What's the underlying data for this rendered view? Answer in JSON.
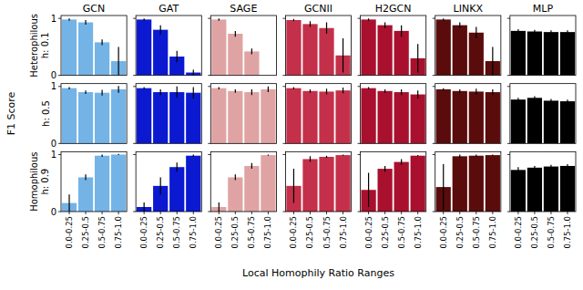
{
  "chart_data": [
    {
      "type": "bar",
      "title": "GCN",
      "ylabel": [
        "Heterophilous",
        "h: 0.1"
      ],
      "categories": [
        "0.0-0.25",
        "0.25-0.5",
        "0.5-0.75",
        "0.75-1.0"
      ],
      "values": [
        0.98,
        0.93,
        0.58,
        0.25
      ],
      "errors": [
        0.02,
        0.04,
        0.05,
        0.25
      ],
      "color": "#74b3e6",
      "ylim": [
        0,
        1.05
      ],
      "yticks": [
        0,
        1
      ],
      "tick_labels": "y"
    },
    {
      "type": "bar",
      "title": "GAT",
      "categories": [
        "0.0-0.25",
        "0.25-0.5",
        "0.5-0.75",
        "0.75-1.0"
      ],
      "values": [
        0.98,
        0.8,
        0.33,
        0.05
      ],
      "errors": [
        0.02,
        0.08,
        0.1,
        0.05
      ],
      "color": "#0b1ad0",
      "ylim": [
        0,
        1.05
      ],
      "yticks": [
        0,
        1
      ],
      "tick_labels": false
    },
    {
      "type": "bar",
      "title": "SAGE",
      "categories": [
        "0.0-0.25",
        "0.25-0.5",
        "0.5-0.75",
        "0.75-1.0"
      ],
      "values": [
        0.98,
        0.73,
        0.42,
        0.0
      ],
      "errors": [
        0.02,
        0.05,
        0.05,
        0.0
      ],
      "color": "#e0a3a3",
      "ylim": [
        0,
        1.05
      ],
      "yticks": [
        0,
        1
      ],
      "tick_labels": false
    },
    {
      "type": "bar",
      "title": "GCNII",
      "categories": [
        "0.0-0.25",
        "0.25-0.5",
        "0.5-0.75",
        "0.75-1.0"
      ],
      "values": [
        0.97,
        0.9,
        0.83,
        0.35
      ],
      "errors": [
        0.02,
        0.05,
        0.1,
        0.3
      ],
      "color": "#c4304a",
      "ylim": [
        0,
        1.05
      ],
      "yticks": [
        0,
        1
      ],
      "tick_labels": false
    },
    {
      "type": "bar",
      "title": "H2GCN",
      "categories": [
        "0.0-0.25",
        "0.25-0.5",
        "0.5-0.75",
        "0.75-1.0"
      ],
      "values": [
        0.98,
        0.88,
        0.78,
        0.3
      ],
      "errors": [
        0.02,
        0.05,
        0.1,
        0.25
      ],
      "color": "#a8102e",
      "ylim": [
        0,
        1.05
      ],
      "yticks": [
        0,
        1
      ],
      "tick_labels": false
    },
    {
      "type": "bar",
      "title": "LINKX",
      "categories": [
        "0.0-0.25",
        "0.25-0.5",
        "0.5-0.75",
        "0.75-1.0"
      ],
      "values": [
        0.98,
        0.88,
        0.75,
        0.25
      ],
      "errors": [
        0.02,
        0.05,
        0.1,
        0.25
      ],
      "color": "#5a0c0c",
      "ylim": [
        0,
        1.05
      ],
      "yticks": [
        0,
        1
      ],
      "tick_labels": false
    },
    {
      "type": "bar",
      "title": "MLP",
      "categories": [
        "0.0-0.25",
        "0.25-0.5",
        "0.5-0.75",
        "0.75-1.0"
      ],
      "values": [
        0.78,
        0.77,
        0.76,
        0.76
      ],
      "errors": [
        0.03,
        0.03,
        0.03,
        0.03
      ],
      "color": "#000000",
      "ylim": [
        0,
        1.05
      ],
      "yticks": [
        0,
        1
      ],
      "tick_labels": false
    },
    {
      "type": "bar",
      "ylabel": [
        "h: 0.5"
      ],
      "categories": [
        "0.0-0.25",
        "0.25-0.5",
        "0.5-0.75",
        "0.75-1.0"
      ],
      "values": [
        0.97,
        0.9,
        0.89,
        0.95
      ],
      "errors": [
        0.02,
        0.03,
        0.05,
        0.06
      ],
      "color": "#74b3e6",
      "ylim": [
        0,
        1.05
      ],
      "yticks": [
        0,
        1
      ],
      "tick_labels": "y"
    },
    {
      "type": "bar",
      "categories": [
        "0.0-0.25",
        "0.25-0.5",
        "0.5-0.75",
        "0.75-1.0"
      ],
      "values": [
        0.97,
        0.9,
        0.9,
        0.89
      ],
      "errors": [
        0.02,
        0.05,
        0.1,
        0.1
      ],
      "color": "#0b1ad0",
      "ylim": [
        0,
        1.05
      ],
      "yticks": [
        0,
        1
      ],
      "tick_labels": false
    },
    {
      "type": "bar",
      "categories": [
        "0.0-0.25",
        "0.25-0.5",
        "0.5-0.75",
        "0.75-1.0"
      ],
      "values": [
        0.97,
        0.92,
        0.9,
        0.95
      ],
      "errors": [
        0.02,
        0.03,
        0.05,
        0.05
      ],
      "color": "#e0a3a3",
      "ylim": [
        0,
        1.05
      ],
      "yticks": [
        0,
        1
      ],
      "tick_labels": false
    },
    {
      "type": "bar",
      "categories": [
        "0.0-0.25",
        "0.25-0.5",
        "0.5-0.75",
        "0.75-1.0"
      ],
      "values": [
        0.97,
        0.92,
        0.91,
        0.93
      ],
      "errors": [
        0.02,
        0.03,
        0.05,
        0.05
      ],
      "color": "#c4304a",
      "ylim": [
        0,
        1.05
      ],
      "yticks": [
        0,
        1
      ],
      "tick_labels": false
    },
    {
      "type": "bar",
      "categories": [
        "0.0-0.25",
        "0.25-0.5",
        "0.5-0.75",
        "0.75-1.0"
      ],
      "values": [
        0.97,
        0.92,
        0.9,
        0.86
      ],
      "errors": [
        0.02,
        0.03,
        0.05,
        0.07
      ],
      "color": "#a8102e",
      "ylim": [
        0,
        1.05
      ],
      "yticks": [
        0,
        1
      ],
      "tick_labels": false
    },
    {
      "type": "bar",
      "categories": [
        "0.0-0.25",
        "0.25-0.5",
        "0.5-0.75",
        "0.75-1.0"
      ],
      "values": [
        0.95,
        0.92,
        0.91,
        0.9
      ],
      "errors": [
        0.02,
        0.03,
        0.05,
        0.05
      ],
      "color": "#5a0c0c",
      "ylim": [
        0,
        1.05
      ],
      "yticks": [
        0,
        1
      ],
      "tick_labels": false
    },
    {
      "type": "bar",
      "categories": [
        "0.0-0.25",
        "0.25-0.5",
        "0.5-0.75",
        "0.75-1.0"
      ],
      "values": [
        0.77,
        0.8,
        0.75,
        0.74
      ],
      "errors": [
        0.03,
        0.03,
        0.03,
        0.03
      ],
      "color": "#000000",
      "ylim": [
        0,
        1.05
      ],
      "yticks": [
        0,
        1
      ],
      "tick_labels": false
    },
    {
      "type": "bar",
      "ylabel": [
        "Homophilous",
        "h: 0.9"
      ],
      "categories": [
        "0.0-0.25",
        "0.25-0.5",
        "0.5-0.75",
        "0.75-1.0"
      ],
      "values": [
        0.15,
        0.6,
        0.98,
        1.0
      ],
      "errors": [
        0.15,
        0.05,
        0.02,
        0.01
      ],
      "color": "#74b3e6",
      "ylim": [
        0,
        1.05
      ],
      "yticks": [
        0,
        1
      ],
      "tick_labels": true
    },
    {
      "type": "bar",
      "categories": [
        "0.0-0.25",
        "0.25-0.5",
        "0.5-0.75",
        "0.75-1.0"
      ],
      "values": [
        0.08,
        0.45,
        0.78,
        0.98
      ],
      "errors": [
        0.08,
        0.15,
        0.08,
        0.02
      ],
      "color": "#0b1ad0",
      "ylim": [
        0,
        1.05
      ],
      "yticks": [
        0,
        1
      ],
      "tick_labels": "x"
    },
    {
      "type": "bar",
      "categories": [
        "0.0-0.25",
        "0.25-0.5",
        "0.5-0.75",
        "0.75-1.0"
      ],
      "values": [
        0.08,
        0.6,
        0.8,
        0.99
      ],
      "errors": [
        0.08,
        0.05,
        0.05,
        0.01
      ],
      "color": "#e0a3a3",
      "ylim": [
        0,
        1.05
      ],
      "yticks": [
        0,
        1
      ],
      "tick_labels": "x"
    },
    {
      "type": "bar",
      "categories": [
        "0.0-0.25",
        "0.25-0.5",
        "0.5-0.75",
        "0.75-1.0"
      ],
      "values": [
        0.45,
        0.92,
        0.96,
        0.99
      ],
      "errors": [
        0.3,
        0.05,
        0.02,
        0.01
      ],
      "color": "#c4304a",
      "ylim": [
        0,
        1.05
      ],
      "yticks": [
        0,
        1
      ],
      "tick_labels": "x"
    },
    {
      "type": "bar",
      "categories": [
        "0.0-0.25",
        "0.25-0.5",
        "0.5-0.75",
        "0.75-1.0"
      ],
      "values": [
        0.38,
        0.75,
        0.87,
        0.98
      ],
      "errors": [
        0.3,
        0.05,
        0.05,
        0.01
      ],
      "color": "#a8102e",
      "ylim": [
        0,
        1.05
      ],
      "yticks": [
        0,
        1
      ],
      "tick_labels": "x"
    },
    {
      "type": "bar",
      "categories": [
        "0.0-0.25",
        "0.25-0.5",
        "0.5-0.75",
        "0.75-1.0"
      ],
      "values": [
        0.43,
        0.97,
        0.98,
        0.99
      ],
      "errors": [
        0.4,
        0.03,
        0.02,
        0.01
      ],
      "color": "#5a0c0c",
      "ylim": [
        0,
        1.05
      ],
      "yticks": [
        0,
        1
      ],
      "tick_labels": "x"
    },
    {
      "type": "bar",
      "categories": [
        "0.0-0.25",
        "0.25-0.5",
        "0.5-0.75",
        "0.75-1.0"
      ],
      "values": [
        0.73,
        0.77,
        0.79,
        0.8
      ],
      "errors": [
        0.05,
        0.03,
        0.03,
        0.03
      ],
      "color": "#000000",
      "ylim": [
        0,
        1.05
      ],
      "yticks": [
        0,
        1
      ],
      "tick_labels": "x"
    }
  ],
  "figure": {
    "ylabel": "F1 Score",
    "xlabel": "Local Homophily Ratio Ranges"
  }
}
